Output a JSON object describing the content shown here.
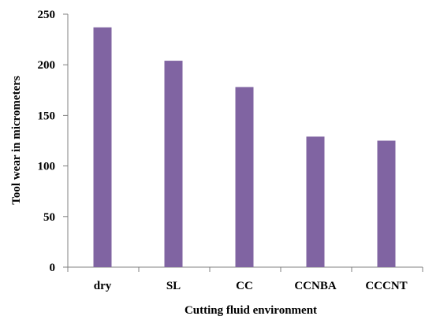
{
  "chart_data": {
    "type": "bar",
    "title": "",
    "xlabel": "Cutting fluid environment",
    "ylabel": "Tool wear in micrometers",
    "categories": [
      "dry",
      "SL",
      "CC",
      "CCNBA",
      "CCCNT"
    ],
    "values": [
      237,
      204,
      178,
      129,
      125
    ],
    "ylim": [
      0,
      250
    ],
    "yticks": [
      "0",
      "50",
      "100",
      "150",
      "200",
      "250"
    ],
    "grid": false,
    "legend": "none",
    "bar_color": "#8064a2",
    "axis_color": "#808080"
  }
}
